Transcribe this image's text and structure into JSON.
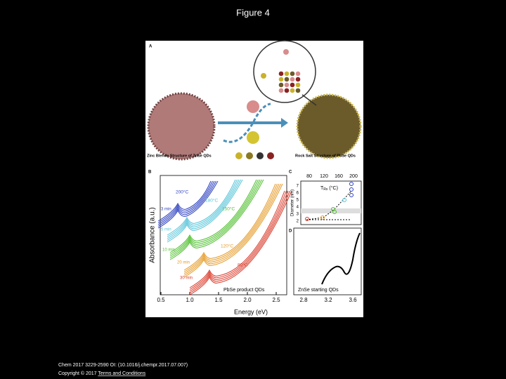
{
  "header": {
    "title": "Figure 4"
  },
  "figure": {
    "panel_a": {
      "label": "A",
      "left_caption": "Zinc Blende Structure of ZnSe QDs",
      "right_caption": "Rock Salt Structure of PbSe QDs"
    },
    "panel_b": {
      "label": "B",
      "y_label": "Absorbance (a.u.)",
      "x_label": "Energy (eV)",
      "x_ticks": [
        "0.5",
        "1.0",
        "1.5",
        "2.0",
        "2.5"
      ],
      "temperatures": [
        "200°C",
        "180°C",
        "150°C",
        "120°C",
        "80°C"
      ],
      "times": [
        "3 min",
        "5 min",
        "10 min",
        "20 min",
        "30 min"
      ],
      "product_label": "PbSe product QDs"
    },
    "panel_c": {
      "label": "C",
      "top_ticks": [
        "80",
        "120",
        "160",
        "200"
      ],
      "axis_title": "T",
      "axis_title_sub": "Rx",
      "axis_title_unit": "(°C)",
      "y_label": "Diameter (nm)",
      "y_ticks": [
        "2",
        "3",
        "4",
        "5",
        "6",
        "7"
      ]
    },
    "panel_d": {
      "label": "D",
      "x_ticks": [
        "2.8",
        "3.2",
        "3.6"
      ],
      "caption": "ZnSe starting QDs"
    }
  },
  "footer": {
    "citation": "Chem 2017 3229-2590 OI: (10.1016/j.chempr.2017.07.007)",
    "copyright": "Copyright © 2017 ",
    "link": "Terms and Conditions"
  }
}
